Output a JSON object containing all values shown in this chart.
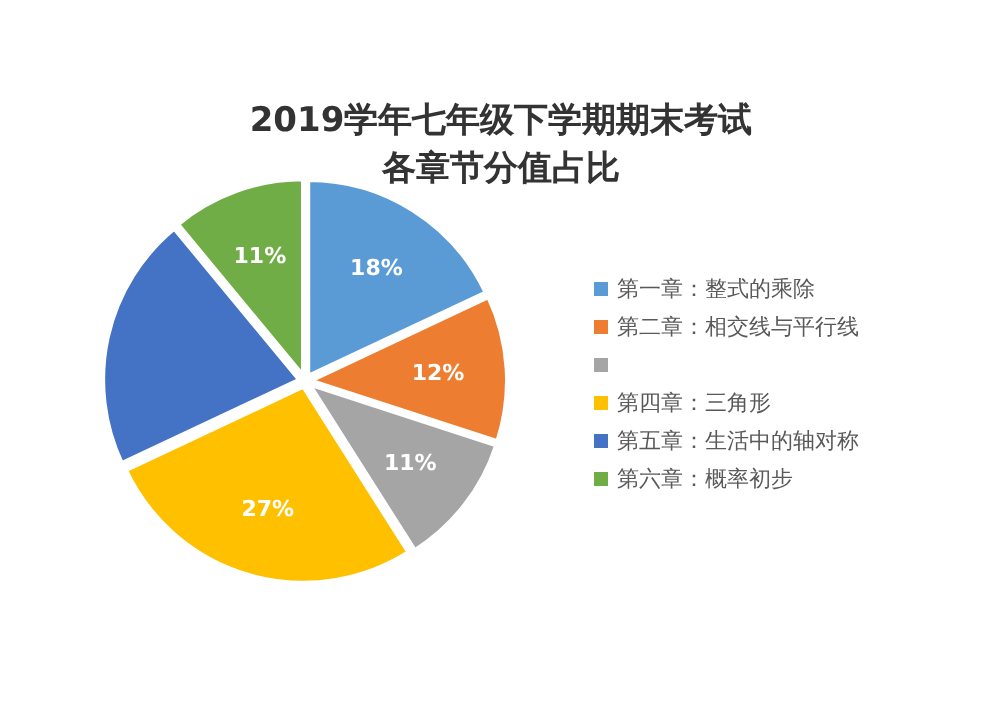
{
  "chart_data": {
    "type": "pie",
    "title": "2019学年七年级下学期期末考试",
    "subtitle": "各章节分值占比",
    "categories": [
      "第一章：整式的乘除",
      "第二章：相交线与平行线",
      null,
      "第四章：三角形",
      "第五章：生活中的轴对称",
      "第六章：概率初步"
    ],
    "values": [
      18,
      12,
      11,
      27,
      21,
      11
    ],
    "colors": [
      "#5b9bd5",
      "#ed7d31",
      "#a5a5a5",
      "#ffc000",
      "#4472c4",
      "#70ad47"
    ],
    "value_labels": [
      "18%",
      "12%",
      "11%",
      "27%",
      null,
      "11%"
    ],
    "legend": "right"
  }
}
